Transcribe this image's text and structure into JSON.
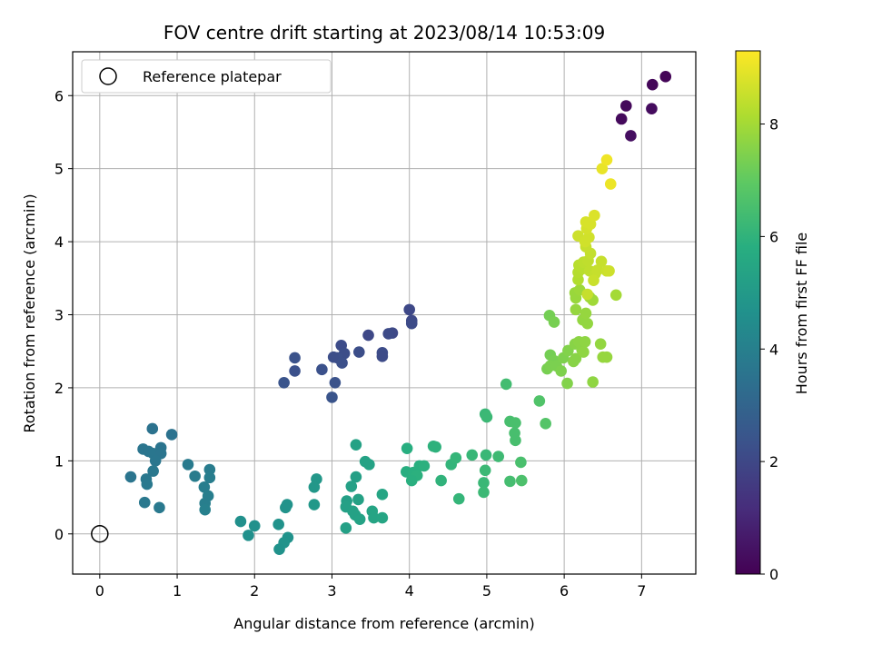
{
  "chart_data": {
    "type": "scatter",
    "title": "FOV centre drift starting at 2023/08/14 10:53:09",
    "xlabel": "Angular distance from reference (arcmin)",
    "ylabel": "Rotation from reference (arcmin)",
    "xlim": [
      -0.35,
      7.7
    ],
    "ylim": [
      -0.55,
      6.6
    ],
    "x_ticks": [
      0,
      1,
      2,
      3,
      4,
      5,
      6,
      7
    ],
    "y_ticks": [
      0,
      1,
      2,
      3,
      4,
      5,
      6
    ],
    "grid": true,
    "legend": {
      "position": "top-left",
      "entries": [
        "Reference platepar"
      ]
    },
    "reference_point": {
      "x": 0,
      "y": 0,
      "label": "Reference platepar"
    },
    "colorbar": {
      "label": "Hours from first FF file",
      "colormap": "viridis",
      "range": [
        0,
        9.3
      ],
      "ticks": [
        0,
        2,
        4,
        6,
        8
      ]
    },
    "points": [
      [
        7.31,
        6.26,
        0.1
      ],
      [
        7.14,
        6.15,
        0.15
      ],
      [
        6.8,
        5.86,
        0.2
      ],
      [
        6.74,
        5.68,
        0.25
      ],
      [
        7.13,
        5.82,
        0.3
      ],
      [
        6.86,
        5.45,
        0.35
      ],
      [
        4.0,
        3.07,
        2.0
      ],
      [
        4.03,
        2.92,
        2.05
      ],
      [
        4.03,
        2.88,
        2.1
      ],
      [
        3.78,
        2.75,
        2.05
      ],
      [
        3.73,
        2.74,
        2.1
      ],
      [
        3.47,
        2.72,
        2.0
      ],
      [
        3.65,
        2.48,
        2.15
      ],
      [
        3.65,
        2.43,
        2.1
      ],
      [
        3.35,
        2.49,
        2.2
      ],
      [
        3.12,
        2.58,
        2.15
      ],
      [
        3.16,
        2.47,
        2.2
      ],
      [
        3.07,
        2.41,
        2.25
      ],
      [
        3.02,
        2.42,
        2.2
      ],
      [
        3.13,
        2.34,
        2.25
      ],
      [
        2.52,
        2.41,
        2.35
      ],
      [
        2.52,
        2.23,
        2.3
      ],
      [
        2.87,
        2.25,
        2.3
      ],
      [
        2.38,
        2.07,
        2.4
      ],
      [
        3.04,
        2.07,
        2.35
      ],
      [
        3.0,
        1.87,
        2.4
      ],
      [
        0.93,
        1.36,
        3.5
      ],
      [
        0.68,
        1.44,
        3.5
      ],
      [
        0.79,
        1.18,
        3.55
      ],
      [
        0.56,
        1.16,
        3.6
      ],
      [
        0.63,
        1.13,
        3.6
      ],
      [
        0.69,
        1.1,
        3.65
      ],
      [
        0.79,
        1.1,
        3.6
      ],
      [
        0.72,
        1.0,
        3.65
      ],
      [
        0.69,
        0.86,
        3.7
      ],
      [
        0.4,
        0.78,
        3.6
      ],
      [
        0.6,
        0.75,
        3.7
      ],
      [
        0.61,
        0.68,
        3.75
      ],
      [
        0.58,
        0.43,
        3.7
      ],
      [
        0.77,
        0.36,
        3.75
      ],
      [
        1.14,
        0.95,
        3.8
      ],
      [
        1.23,
        0.79,
        3.85
      ],
      [
        1.42,
        0.88,
        3.85
      ],
      [
        1.42,
        0.77,
        3.9
      ],
      [
        1.35,
        0.64,
        3.9
      ],
      [
        1.4,
        0.52,
        3.95
      ],
      [
        1.36,
        0.42,
        3.95
      ],
      [
        1.36,
        0.33,
        4.0
      ],
      [
        1.82,
        0.17,
        4.6
      ],
      [
        2.0,
        0.11,
        4.65
      ],
      [
        1.92,
        -0.02,
        4.6
      ],
      [
        2.31,
        0.13,
        4.7
      ],
      [
        2.42,
        0.4,
        4.75
      ],
      [
        2.4,
        0.36,
        4.75
      ],
      [
        2.43,
        -0.05,
        4.7
      ],
      [
        2.38,
        -0.12,
        4.75
      ],
      [
        2.32,
        -0.21,
        4.7
      ],
      [
        2.8,
        0.75,
        4.9
      ],
      [
        2.77,
        0.64,
        4.9
      ],
      [
        2.77,
        0.4,
        4.95
      ],
      [
        3.31,
        1.22,
        5.3
      ],
      [
        3.31,
        0.78,
        5.2
      ],
      [
        3.19,
        0.45,
        5.2
      ],
      [
        3.25,
        0.65,
        5.25
      ],
      [
        3.18,
        0.37,
        5.25
      ],
      [
        3.34,
        0.47,
        5.3
      ],
      [
        3.43,
        0.99,
        5.35
      ],
      [
        3.48,
        0.95,
        5.35
      ],
      [
        3.3,
        0.26,
        5.3
      ],
      [
        3.36,
        0.2,
        5.35
      ],
      [
        3.27,
        0.31,
        5.3
      ],
      [
        3.52,
        0.31,
        5.4
      ],
      [
        3.54,
        0.22,
        5.4
      ],
      [
        3.18,
        0.08,
        5.25
      ],
      [
        3.65,
        0.54,
        5.45
      ],
      [
        3.65,
        0.22,
        5.45
      ],
      [
        3.97,
        1.17,
        5.8
      ],
      [
        3.96,
        0.85,
        5.8
      ],
      [
        4.05,
        0.84,
        5.85
      ],
      [
        4.13,
        0.93,
        5.85
      ],
      [
        4.19,
        0.93,
        5.9
      ],
      [
        4.1,
        0.8,
        5.9
      ],
      [
        4.03,
        0.73,
        5.85
      ],
      [
        4.31,
        1.2,
        5.95
      ],
      [
        4.34,
        1.19,
        5.95
      ],
      [
        4.41,
        0.73,
        6.0
      ],
      [
        4.54,
        0.95,
        6.05
      ],
      [
        4.6,
        1.04,
        6.1
      ],
      [
        4.64,
        0.48,
        6.1
      ],
      [
        4.81,
        1.08,
        6.15
      ],
      [
        4.99,
        1.08,
        6.2
      ],
      [
        4.98,
        0.87,
        6.25
      ],
      [
        4.96,
        0.7,
        6.2
      ],
      [
        4.96,
        0.57,
        6.25
      ],
      [
        4.98,
        1.64,
        6.2
      ],
      [
        5.0,
        1.6,
        6.25
      ],
      [
        5.15,
        1.06,
        6.3
      ],
      [
        5.25,
        2.05,
        6.4
      ],
      [
        5.3,
        1.54,
        6.5
      ],
      [
        5.37,
        1.52,
        6.55
      ],
      [
        5.36,
        1.38,
        6.5
      ],
      [
        5.37,
        1.28,
        6.5
      ],
      [
        5.3,
        0.72,
        6.45
      ],
      [
        5.44,
        0.98,
        6.55
      ],
      [
        5.45,
        0.73,
        6.6
      ],
      [
        5.68,
        1.82,
        6.7
      ],
      [
        5.76,
        1.51,
        6.75
      ],
      [
        5.81,
        2.99,
        7.3
      ],
      [
        5.87,
        2.9,
        7.35
      ],
      [
        5.82,
        2.45,
        7.3
      ],
      [
        5.87,
        2.37,
        7.35
      ],
      [
        5.78,
        2.26,
        7.35
      ],
      [
        5.82,
        2.3,
        7.4
      ],
      [
        5.9,
        2.3,
        7.4
      ],
      [
        5.96,
        2.23,
        7.45
      ],
      [
        5.99,
        2.41,
        7.45
      ],
      [
        6.05,
        2.51,
        7.5
      ],
      [
        6.04,
        2.06,
        7.5
      ],
      [
        6.12,
        2.36,
        7.6
      ],
      [
        6.15,
        2.4,
        7.6
      ],
      [
        6.14,
        2.6,
        7.6
      ],
      [
        6.19,
        2.63,
        7.65
      ],
      [
        6.23,
        2.52,
        7.65
      ],
      [
        6.25,
        2.49,
        7.7
      ],
      [
        6.27,
        2.63,
        7.7
      ],
      [
        6.3,
        2.88,
        7.75
      ],
      [
        6.24,
        2.93,
        7.75
      ],
      [
        6.28,
        3.02,
        7.8
      ],
      [
        6.15,
        3.07,
        7.8
      ],
      [
        6.15,
        3.23,
        7.85
      ],
      [
        6.14,
        3.3,
        7.85
      ],
      [
        6.33,
        3.24,
        7.9
      ],
      [
        6.2,
        3.34,
        7.9
      ],
      [
        6.37,
        3.2,
        7.95
      ],
      [
        6.37,
        2.08,
        7.7
      ],
      [
        6.47,
        2.6,
        7.75
      ],
      [
        6.5,
        2.42,
        7.8
      ],
      [
        6.55,
        2.42,
        7.8
      ],
      [
        6.67,
        3.27,
        8.0
      ],
      [
        6.18,
        3.48,
        8.2
      ],
      [
        6.18,
        3.58,
        8.25
      ],
      [
        6.24,
        3.63,
        8.3
      ],
      [
        6.19,
        3.68,
        8.3
      ],
      [
        6.25,
        3.72,
        8.35
      ],
      [
        6.31,
        3.74,
        8.4
      ],
      [
        6.34,
        3.84,
        8.45
      ],
      [
        6.28,
        3.93,
        8.5
      ],
      [
        6.33,
        3.6,
        8.4
      ],
      [
        6.4,
        3.56,
        8.45
      ],
      [
        6.43,
        3.61,
        8.5
      ],
      [
        6.48,
        3.73,
        8.5
      ],
      [
        6.55,
        3.6,
        8.55
      ],
      [
        6.58,
        3.6,
        8.6
      ],
      [
        6.18,
        4.08,
        8.6
      ],
      [
        6.27,
        4.0,
        8.65
      ],
      [
        6.32,
        4.06,
        8.65
      ],
      [
        6.29,
        4.18,
        8.7
      ],
      [
        6.28,
        4.27,
        8.75
      ],
      [
        6.34,
        4.24,
        8.75
      ],
      [
        6.39,
        4.36,
        8.8
      ],
      [
        6.3,
        3.28,
        8.5
      ],
      [
        6.38,
        3.47,
        8.55
      ],
      [
        6.49,
        5.0,
        9.0
      ],
      [
        6.55,
        5.12,
        9.1
      ],
      [
        6.6,
        4.79,
        9.05
      ]
    ]
  }
}
